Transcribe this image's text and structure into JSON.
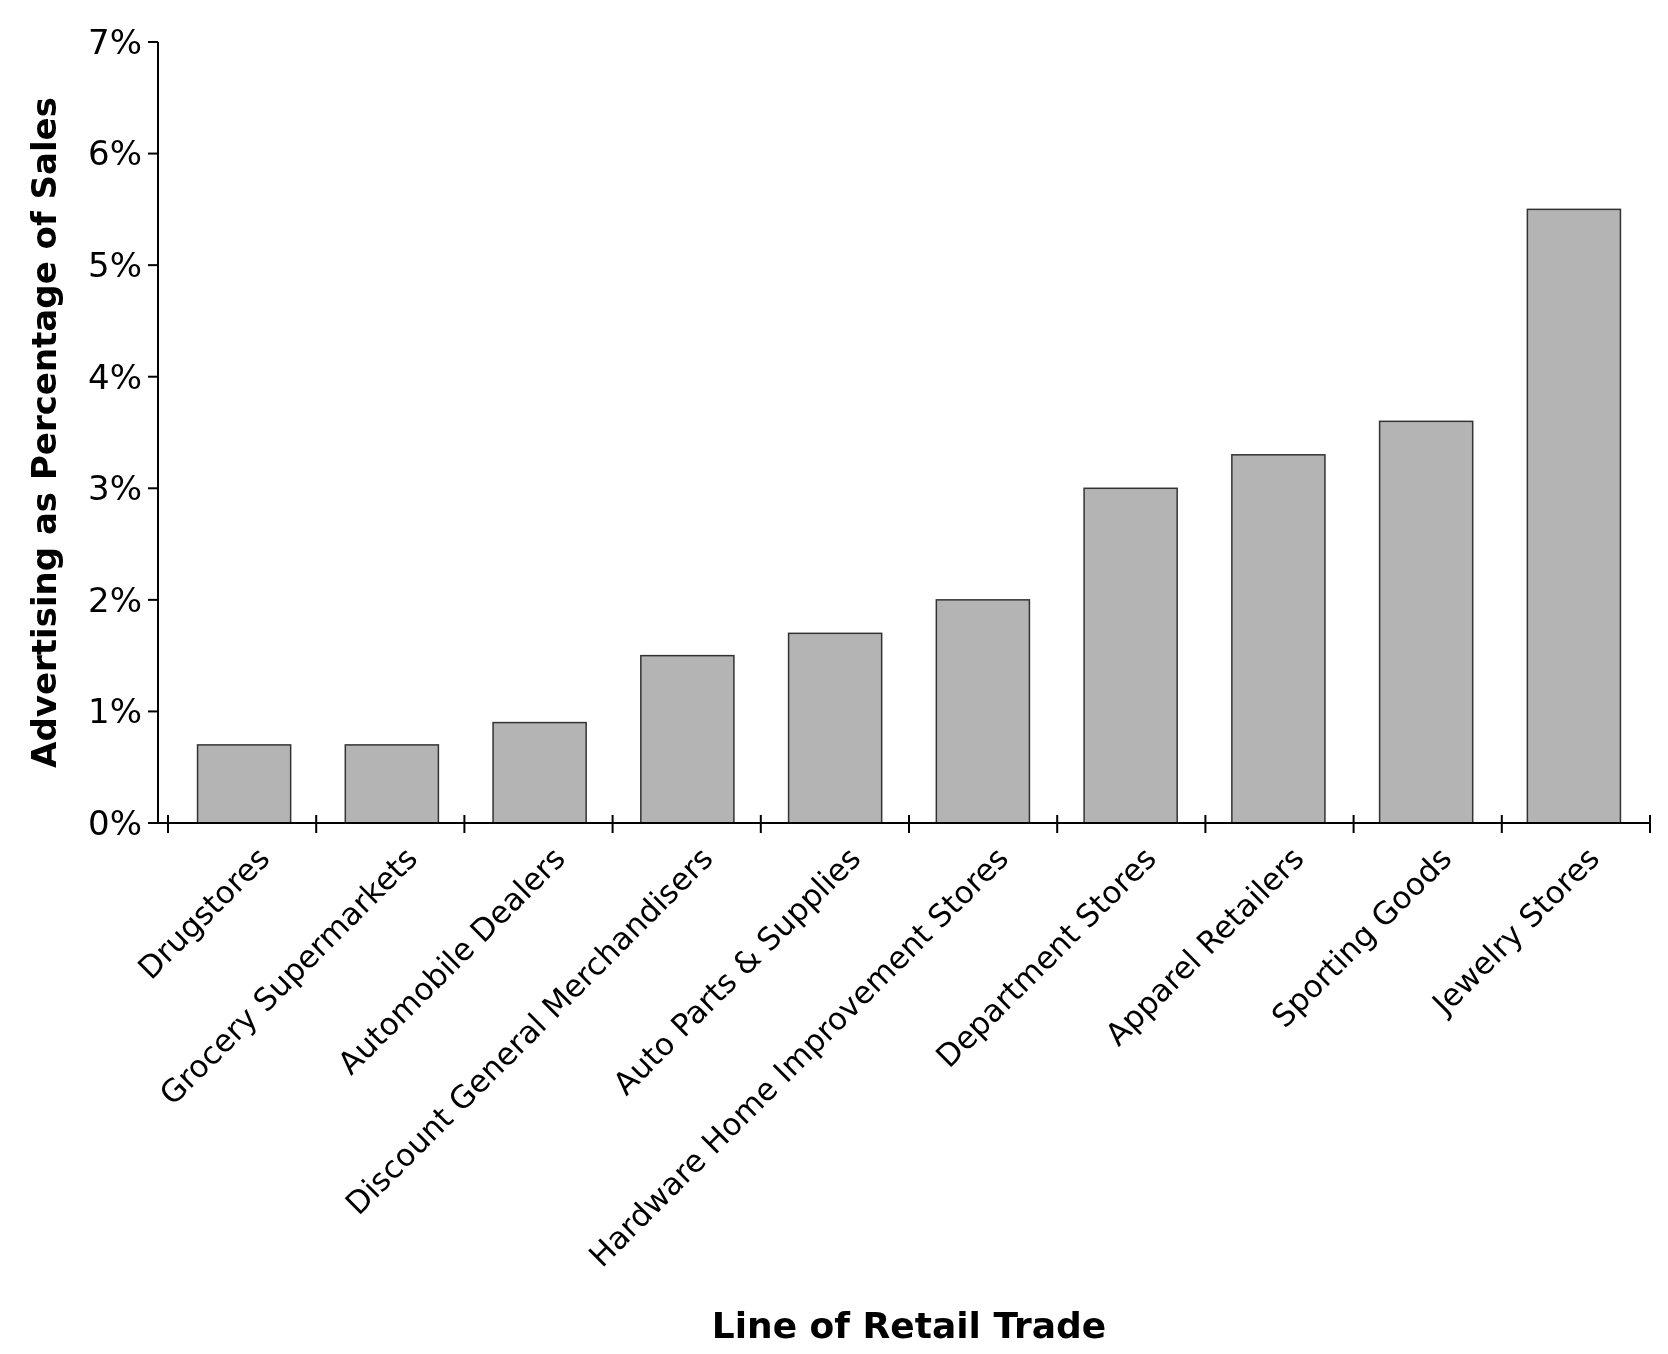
{
  "chart_data": {
    "type": "bar",
    "xlabel": "Line of Retail Trade",
    "ylabel": "Advertising as Percentage of Sales",
    "categories": [
      "Drugstores",
      "Grocery Supermarkets",
      "Automobile Dealers",
      "Discount General Merchandisers",
      "Auto Parts & Supplies",
      "Hardware Home Improvement Stores",
      "Department Stores",
      "Apparel Retailers",
      "Sporting Goods",
      "Jewelry Stores"
    ],
    "values": [
      0.7,
      0.7,
      0.9,
      1.5,
      1.7,
      2.0,
      3.0,
      3.3,
      3.6,
      5.5
    ],
    "color": "#b4b4b4",
    "ylim": [
      0,
      7
    ],
    "yticks": [
      {
        "value": 0,
        "label": "0%"
      },
      {
        "value": 1,
        "label": "1%"
      },
      {
        "value": 2,
        "label": "2%"
      },
      {
        "value": 3,
        "label": "3%"
      },
      {
        "value": 4,
        "label": "4%"
      },
      {
        "value": 5,
        "label": "5%"
      },
      {
        "value": 6,
        "label": "6%"
      },
      {
        "value": 7,
        "label": "7%"
      }
    ],
    "grid": false
  }
}
